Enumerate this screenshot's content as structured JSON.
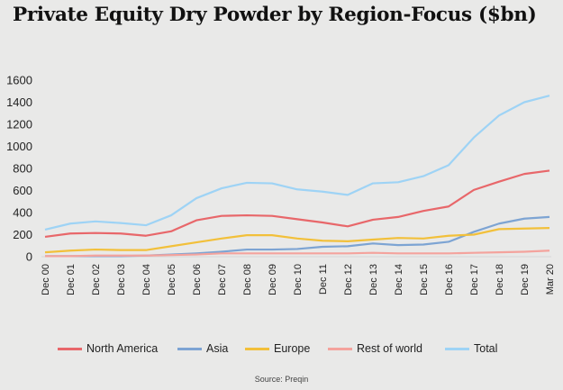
{
  "title": "Private Equity Dry Powder by Region-Focus ($bn)",
  "source": "Source: Preqin",
  "chart_data": {
    "type": "line",
    "title": "Private Equity Dry Powder by Region-Focus ($bn)",
    "xlabel": "",
    "ylabel": "",
    "ylim": [
      0,
      1600
    ],
    "yticks": [
      0,
      200,
      400,
      600,
      800,
      1000,
      1200,
      1400,
      1600
    ],
    "grid": false,
    "legend_position": "bottom",
    "categories": [
      "Dec 00",
      "Dec 01",
      "Dec 02",
      "Dec 03",
      "Dec 04",
      "Dec 05",
      "Dec 06",
      "Dec 07",
      "Dec 08",
      "Dec 09",
      "Dec 10",
      "Dec 11",
      "Dec 12",
      "Dec 13",
      "Dec 14",
      "Dec 15",
      "Dec 16",
      "Dec 17",
      "Dec 18",
      "Dec 19",
      "Mar 20"
    ],
    "series": [
      {
        "name": "North America",
        "color": "#e8676a",
        "values": [
          180,
          210,
          215,
          210,
          190,
          230,
          330,
          370,
          375,
          370,
          340,
          310,
          275,
          335,
          360,
          415,
          455,
          605,
          680,
          750,
          780
        ]
      },
      {
        "name": "Asia",
        "color": "#7da4d3",
        "values": [
          5,
          5,
          5,
          5,
          10,
          20,
          30,
          45,
          65,
          65,
          70,
          90,
          95,
          120,
          105,
          110,
          135,
          225,
          300,
          345,
          360
        ]
      },
      {
        "name": "Europe",
        "color": "#f2c03a",
        "values": [
          40,
          55,
          65,
          60,
          60,
          95,
          130,
          165,
          195,
          195,
          165,
          145,
          140,
          155,
          170,
          165,
          190,
          200,
          250,
          255,
          260
        ]
      },
      {
        "name": "Rest of world",
        "color": "#f4a39d",
        "values": [
          5,
          5,
          10,
          10,
          10,
          15,
          20,
          30,
          30,
          30,
          30,
          30,
          30,
          35,
          30,
          30,
          30,
          35,
          40,
          45,
          55
        ]
      },
      {
        "name": "Total",
        "color": "#9ed3f5",
        "values": [
          245,
          300,
          320,
          305,
          285,
          375,
          530,
          620,
          670,
          665,
          610,
          590,
          560,
          665,
          675,
          730,
          830,
          1080,
          1280,
          1400,
          1460
        ]
      }
    ]
  }
}
